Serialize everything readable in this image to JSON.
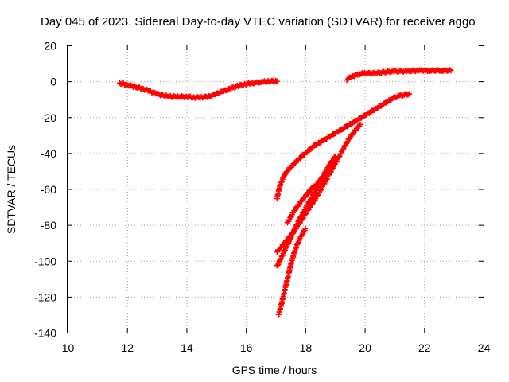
{
  "chart_data": {
    "type": "scatter",
    "title": "Day 045 of 2023, Sidereal Day-to-day VTEC variation (SDTVAR) for receiver aggo",
    "xlabel": "GPS time / hours",
    "ylabel": "SDTVAR / TECUs",
    "xlim": [
      10,
      24
    ],
    "ylim": [
      -140,
      20
    ],
    "x_ticks": [
      "10",
      "12",
      "14",
      "16",
      "18",
      "20",
      "22",
      "24"
    ],
    "y_ticks": [
      "20",
      "0",
      "-20",
      "-40",
      "-60",
      "-80",
      "-100",
      "-120",
      "-140"
    ],
    "grid": true,
    "marker": "+",
    "color": "#ff0000",
    "series": [
      {
        "name": "arc-1",
        "x": [
          11.75,
          12.0,
          12.25,
          12.5,
          12.75,
          13.0,
          13.25,
          13.5,
          13.75,
          14.0,
          14.25,
          14.5,
          14.75,
          15.0,
          15.25,
          15.5,
          15.75,
          16.0,
          16.25,
          16.5,
          16.75,
          17.0,
          17.05
        ],
        "y": [
          -1,
          -2,
          -3,
          -4,
          -5.5,
          -7,
          -8,
          -8.5,
          -8.5,
          -8.5,
          -9,
          -9,
          -8.5,
          -7,
          -5.5,
          -4,
          -2.5,
          -1.5,
          -1,
          -0.5,
          0,
          0,
          0
        ]
      },
      {
        "name": "arc-2",
        "x": [
          19.4,
          19.6,
          19.8,
          20.0,
          20.3,
          20.6,
          21.0,
          21.4,
          21.8,
          22.2,
          22.6,
          22.9
        ],
        "y": [
          1,
          3,
          4,
          4.5,
          4.5,
          5,
          5.5,
          5.5,
          6,
          6,
          6,
          6
        ]
      },
      {
        "name": "arc-3",
        "x": [
          17.05,
          17.15,
          17.3,
          17.5,
          17.8,
          18.0,
          18.3,
          18.6,
          19.0,
          19.3,
          19.6,
          20.0,
          20.4,
          20.7,
          21.0,
          21.2,
          21.5
        ],
        "y": [
          -65,
          -58,
          -52,
          -48,
          -43,
          -40,
          -36,
          -33,
          -29,
          -26,
          -23,
          -19,
          -15,
          -12,
          -9,
          -8,
          -7
        ]
      },
      {
        "name": "arc-4",
        "x": [
          17.05,
          17.2,
          17.4,
          17.6,
          17.8,
          18.0,
          18.2,
          18.4,
          18.6,
          18.8,
          19.0,
          19.2,
          19.4,
          19.6,
          19.85
        ],
        "y": [
          -95,
          -92,
          -88,
          -84,
          -79,
          -74,
          -69,
          -64,
          -58,
          -52,
          -46,
          -40,
          -34,
          -29,
          -24
        ]
      },
      {
        "name": "arc-5",
        "x": [
          17.4,
          17.6,
          17.8,
          18.0,
          18.2,
          18.4,
          18.6,
          18.8,
          19.0
        ],
        "y": [
          -79,
          -73,
          -68,
          -64,
          -60,
          -57,
          -53,
          -49,
          -45
        ]
      },
      {
        "name": "arc-6",
        "x": [
          17.05,
          17.2,
          17.4,
          17.6,
          17.8,
          18.0,
          18.2,
          18.4,
          18.6,
          18.8,
          19.0
        ],
        "y": [
          -103,
          -98,
          -91,
          -84,
          -77,
          -71,
          -65,
          -59,
          -53,
          -47,
          -42
        ]
      },
      {
        "name": "arc-7",
        "x": [
          17.1,
          17.2,
          17.3,
          17.4,
          17.5,
          17.6,
          17.7,
          17.8,
          17.9,
          18.0
        ],
        "y": [
          -130,
          -124,
          -117,
          -110,
          -103,
          -97,
          -92,
          -88,
          -85,
          -82
        ]
      }
    ]
  }
}
